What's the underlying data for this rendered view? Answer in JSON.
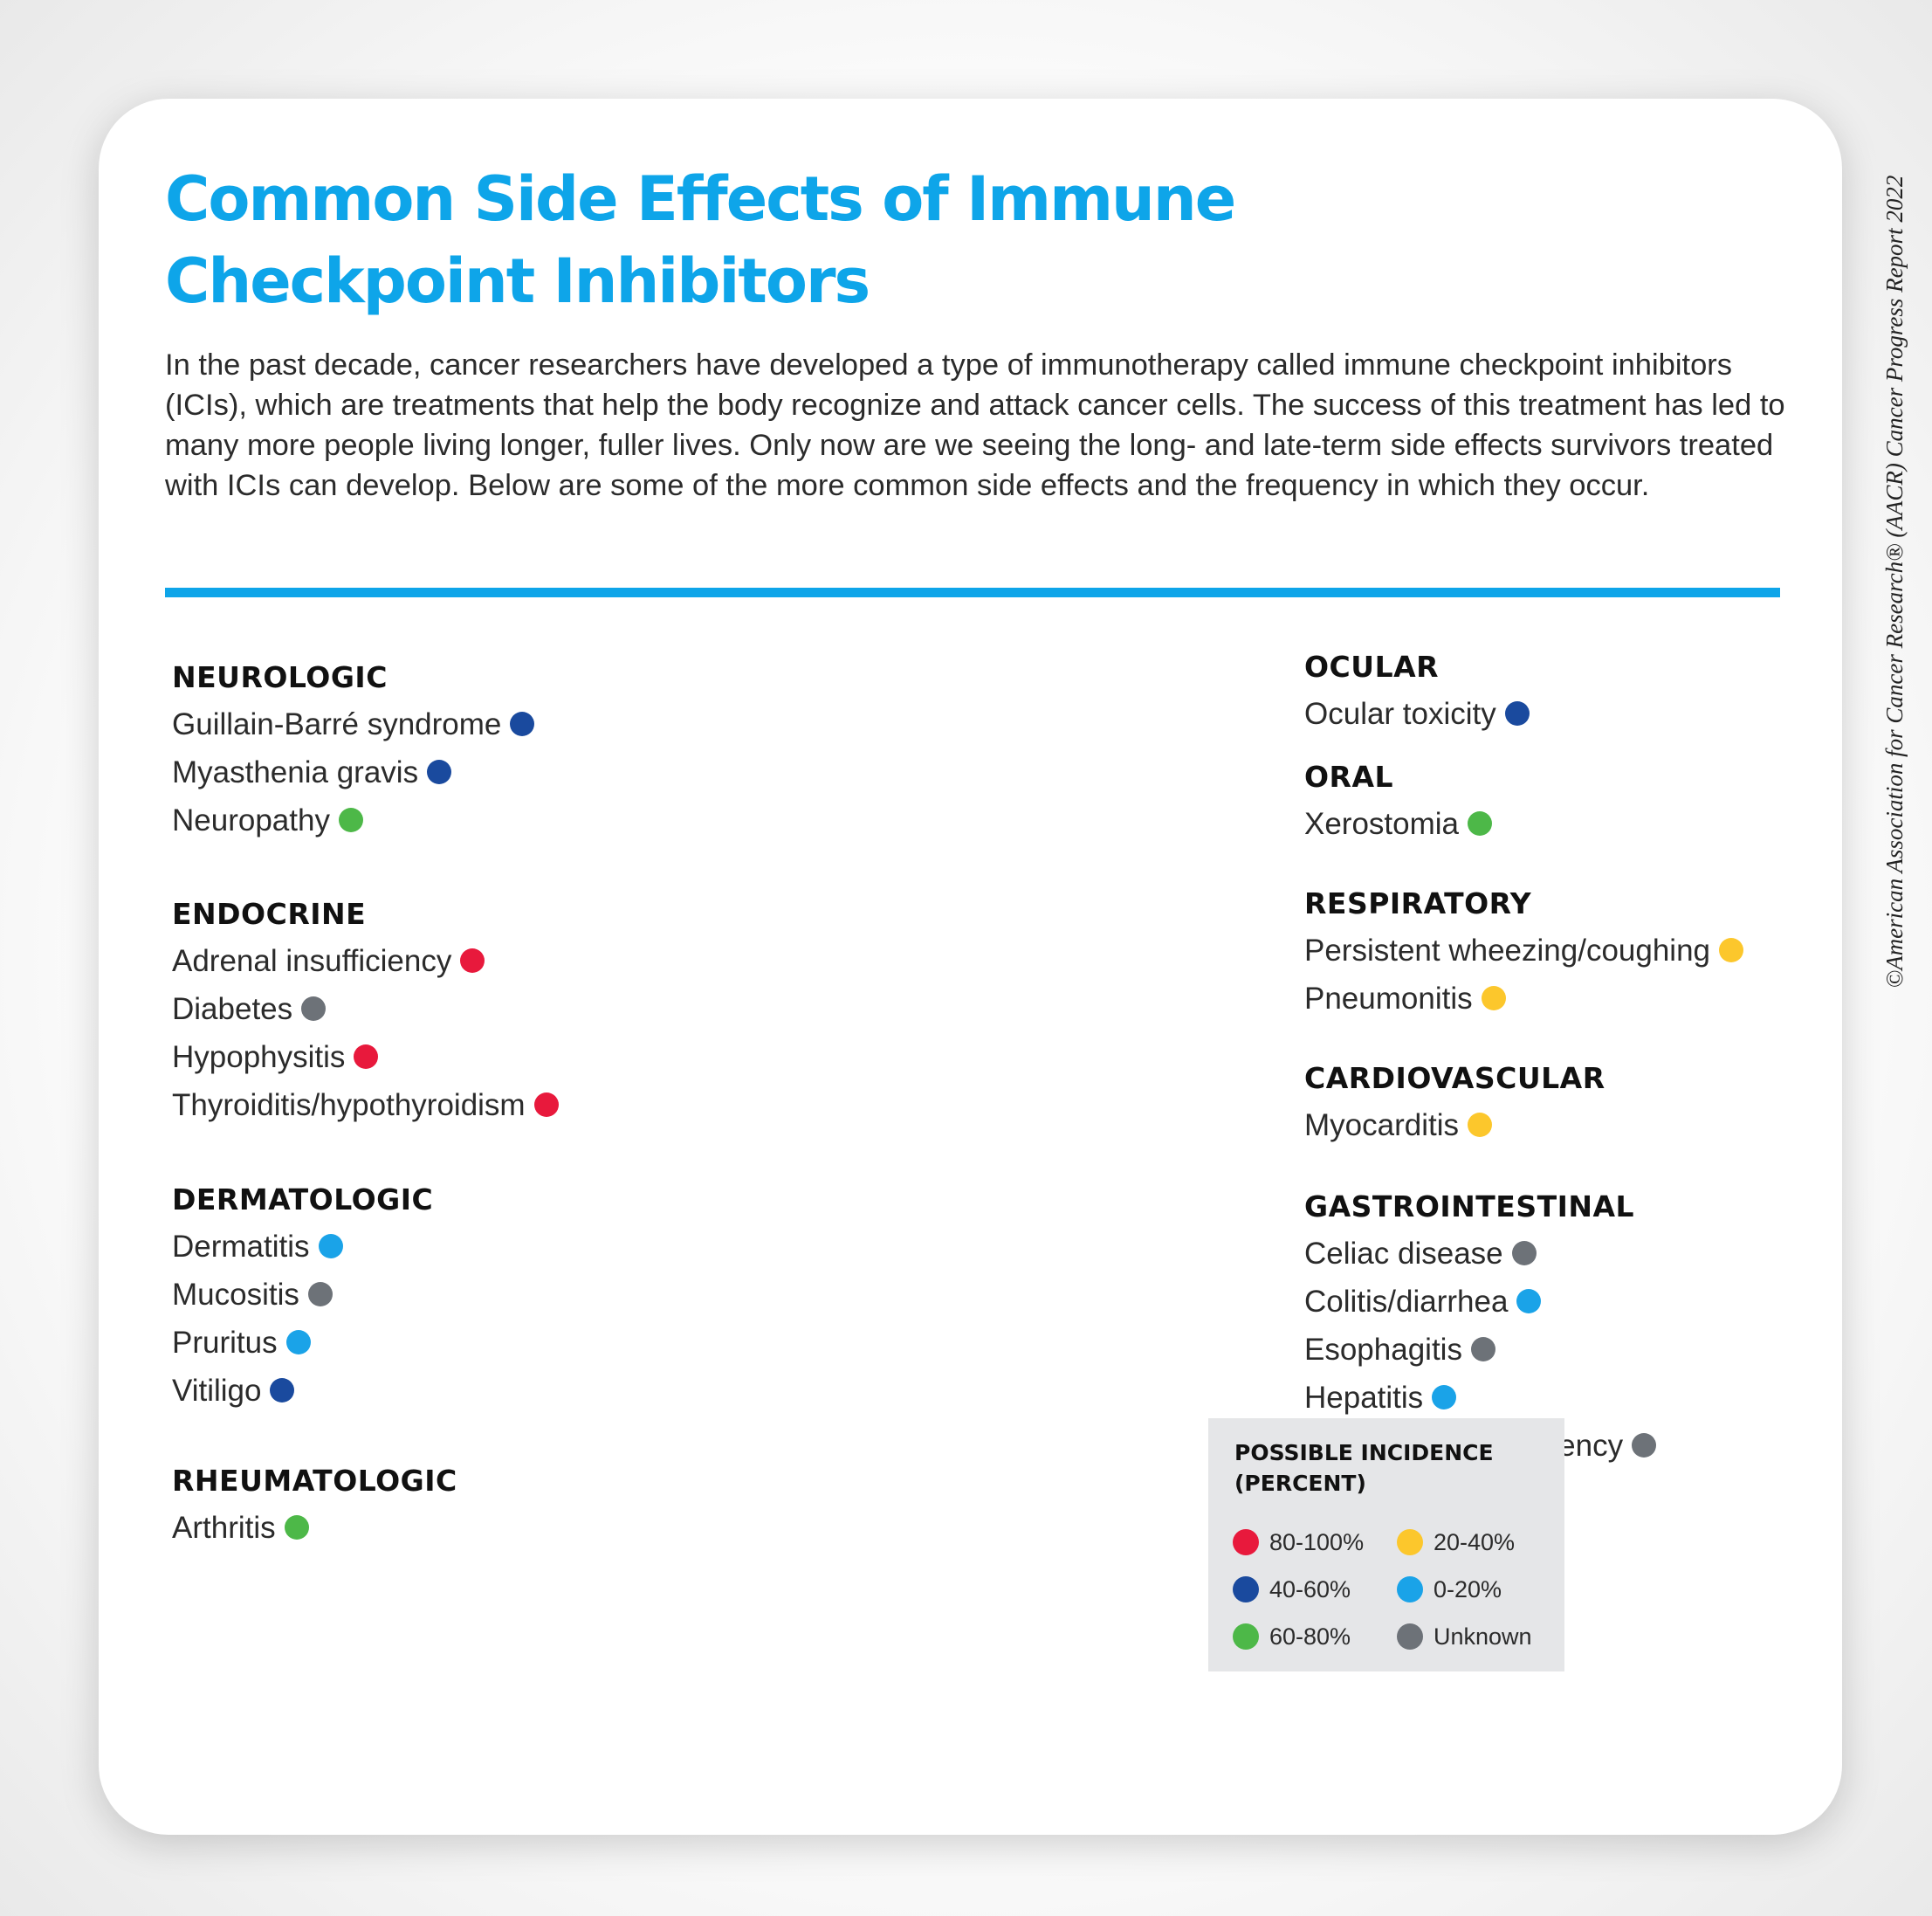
{
  "title": "Common Side Effects of Immune Checkpoint Inhibitors",
  "intro": "In the past decade, cancer researchers have developed a type of immunotherapy called immune checkpoint inhibitors (ICIs), which are treatments that help the body recognize and attack cancer cells. The success of this treatment has led to many more people living longer, fuller lives. Only now are we seeing the long- and late-term side effects survivors treated with ICIs can develop. Below are some of the more common side effects and the frequency in which they occur.",
  "copyright": "©American Association for Cancer Research® (AACR) Cancer Progress Report 2022",
  "colors": {
    "accent": "#0ea5e9",
    "body_light": "#e6e6e6",
    "body_dark": "#dadada",
    "incidence_80_100": "#e8193c",
    "incidence_40_60": "#1a4a9e",
    "incidence_60_80": "#4db848",
    "incidence_20_40": "#fcc72c",
    "incidence_0_20": "#1aa3e8",
    "incidence_unknown": "#6d7278"
  },
  "groups": {
    "neurologic": {
      "title": "NEUROLOGIC",
      "items": [
        {
          "label": "Guillain-Barré syndrome",
          "incidence": "40-60%"
        },
        {
          "label": "Myasthenia gravis",
          "incidence": "40-60%"
        },
        {
          "label": "Neuropathy",
          "incidence": "60-80%"
        }
      ]
    },
    "endocrine": {
      "title": "ENDOCRINE",
      "items": [
        {
          "label": "Adrenal insufficiency",
          "incidence": "80-100%"
        },
        {
          "label": "Diabetes",
          "incidence": "Unknown"
        },
        {
          "label": "Hypophysitis",
          "incidence": "80-100%"
        },
        {
          "label": "Thyroiditis/hypothyroidism",
          "incidence": "80-100%"
        }
      ]
    },
    "dermatologic": {
      "title": "DERMATOLOGIC",
      "items": [
        {
          "label": "Dermatitis",
          "incidence": "0-20%"
        },
        {
          "label": "Mucositis",
          "incidence": "Unknown"
        },
        {
          "label": "Pruritus",
          "incidence": "0-20%"
        },
        {
          "label": "Vitiligo",
          "incidence": "40-60%"
        }
      ]
    },
    "rheumatologic": {
      "title": "RHEUMATOLOGIC",
      "items": [
        {
          "label": "Arthritis",
          "incidence": "60-80%"
        }
      ]
    },
    "ocular": {
      "title": "OCULAR",
      "items": [
        {
          "label": "Ocular toxicity",
          "incidence": "40-60%"
        }
      ]
    },
    "oral": {
      "title": "ORAL",
      "items": [
        {
          "label": "Xerostomia",
          "incidence": "60-80%"
        }
      ]
    },
    "respiratory": {
      "title": "RESPIRATORY",
      "items": [
        {
          "label": "Persistent wheezing/coughing",
          "incidence": "20-40%"
        },
        {
          "label": "Pneumonitis",
          "incidence": "20-40%"
        }
      ]
    },
    "cardiovascular": {
      "title": "CARDIOVASCULAR",
      "items": [
        {
          "label": "Myocarditis",
          "incidence": "20-40%"
        }
      ]
    },
    "gastrointestinal": {
      "title": "GASTROINTESTINAL",
      "items": [
        {
          "label": "Celiac disease",
          "incidence": "Unknown"
        },
        {
          "label": "Colitis/diarrhea",
          "incidence": "0-20%"
        },
        {
          "label": "Esophagitis",
          "incidence": "Unknown"
        },
        {
          "label": "Hepatitis",
          "incidence": "0-20%"
        },
        {
          "label": "Pancreatic insufficiency",
          "incidence": "Unknown"
        }
      ]
    }
  },
  "legend": {
    "title": "POSSIBLE INCIDENCE (PERCENT)",
    "entries": [
      {
        "label": "80-100%",
        "color": "#e8193c"
      },
      {
        "label": "40-60%",
        "color": "#1a4a9e"
      },
      {
        "label": "60-80%",
        "color": "#4db848"
      },
      {
        "label": "20-40%",
        "color": "#fcc72c"
      },
      {
        "label": "0-20%",
        "color": "#1aa3e8"
      },
      {
        "label": "Unknown",
        "color": "#6d7278"
      }
    ]
  }
}
